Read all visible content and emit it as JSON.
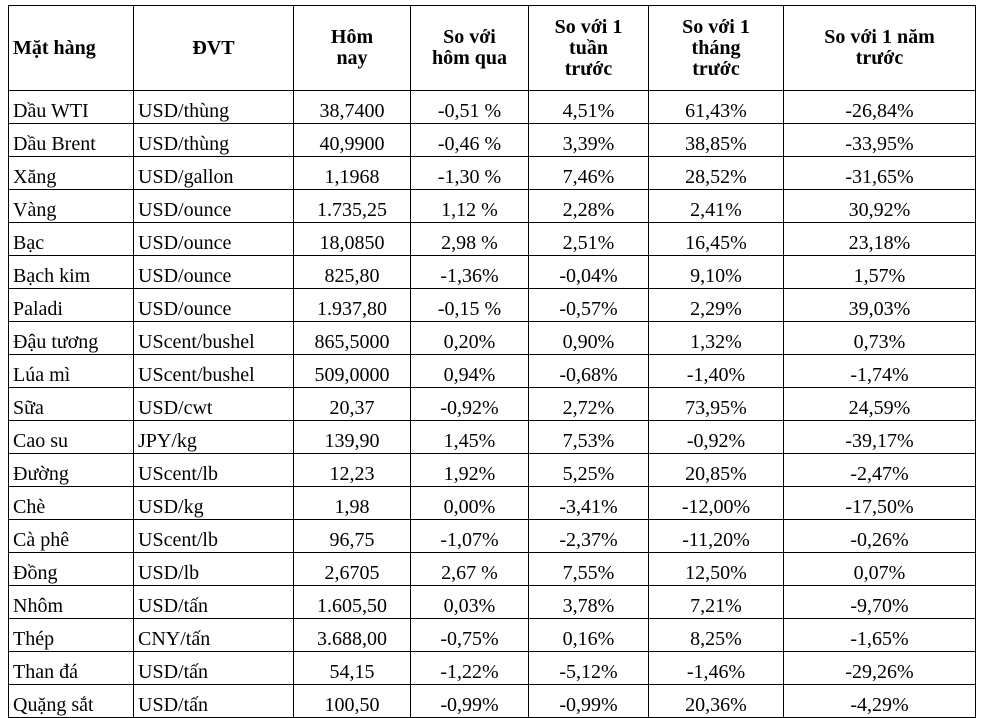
{
  "table": {
    "header": [
      "Mặt hàng",
      "ĐVT",
      "Hôm nay",
      "So với hôm qua",
      "So với 1 tuần trước",
      "So với 1 tháng trước",
      "So với 1 năm trước"
    ],
    "rows": [
      [
        "Dầu WTI",
        "USD/thùng",
        "38,7400",
        "-0,51 %",
        "4,51%",
        "61,43%",
        "-26,84%"
      ],
      [
        "Dầu Brent",
        "USD/thùng",
        "40,9900",
        "-0,46 %",
        "3,39%",
        "38,85%",
        "-33,95%"
      ],
      [
        "Xăng",
        "USD/gallon",
        "1,1968",
        "-1,30 %",
        "7,46%",
        "28,52%",
        "-31,65%"
      ],
      [
        "Vàng",
        "USD/ounce",
        "1.735,25",
        "1,12 %",
        "2,28%",
        "2,41%",
        "30,92%"
      ],
      [
        "Bạc",
        "USD/ounce",
        "18,0850",
        "2,98 %",
        "2,51%",
        "16,45%",
        "23,18%"
      ],
      [
        "Bạch kim",
        "USD/ounce",
        "825,80",
        "-1,36%",
        "-0,04%",
        "9,10%",
        "1,57%"
      ],
      [
        "Paladi",
        "USD/ounce",
        "1.937,80",
        "-0,15 %",
        "-0,57%",
        "2,29%",
        "39,03%"
      ],
      [
        "Đậu tương",
        "UScent/bushel",
        "865,5000",
        "0,20%",
        "0,90%",
        "1,32%",
        "0,73%"
      ],
      [
        "Lúa mì",
        "UScent/bushel",
        "509,0000",
        "0,94%",
        "-0,68%",
        "-1,40%",
        "-1,74%"
      ],
      [
        "Sữa",
        "USD/cwt",
        "20,37",
        "-0,92%",
        "2,72%",
        "73,95%",
        "24,59%"
      ],
      [
        "Cao su",
        "JPY/kg",
        "139,90",
        "1,45%",
        "7,53%",
        "-0,92%",
        "-39,17%"
      ],
      [
        "Đường",
        "UScent/lb",
        "12,23",
        "1,92%",
        "5,25%",
        "20,85%",
        "-2,47%"
      ],
      [
        "Chè",
        "USD/kg",
        "1,98",
        "0,00%",
        "-3,41%",
        "-12,00%",
        "-17,50%"
      ],
      [
        "Cà phê",
        "UScent/lb",
        "96,75",
        "-1,07%",
        "-2,37%",
        "-11,20%",
        "-0,26%"
      ],
      [
        "Đồng",
        "USD/lb",
        "2,6705",
        "2,67 %",
        "7,55%",
        "12,50%",
        "0,07%"
      ],
      [
        "Nhôm",
        "USD/tấn",
        "1.605,50",
        "0,03%",
        "3,78%",
        "7,21%",
        "-9,70%"
      ],
      [
        "Thép",
        "CNY/tấn",
        "3.688,00",
        "-0,75%",
        "0,16%",
        "8,25%",
        "-1,65%"
      ],
      [
        "Than đá",
        "USD/tấn",
        "54,15",
        "-1,22%",
        "-5,12%",
        "-1,46%",
        "-29,26%"
      ],
      [
        "Quặng sắt",
        "USD/tấn",
        "100,50",
        "-0,99%",
        "-0,99%",
        "20,36%",
        "-4,29%"
      ]
    ]
  }
}
